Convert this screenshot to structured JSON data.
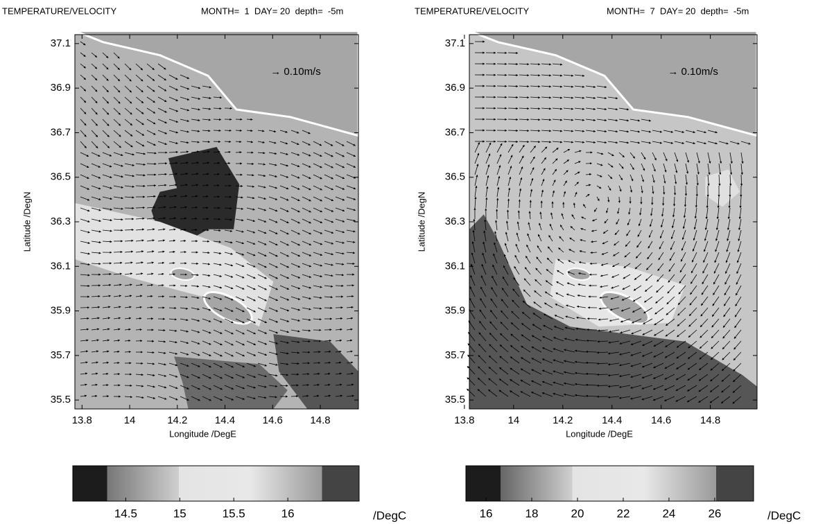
{
  "chart_data": [
    {
      "type": "quiver",
      "title": "TEMPERATURE/VELOCITY",
      "subtitle": "MONTH=  1  DAY= 20  depth=  -5m",
      "xlabel": "Longitude /DegE",
      "ylabel": "Latitude /DegN",
      "annotation": "→ 0.10m/s",
      "xlim": [
        13.77,
        14.96
      ],
      "ylim": [
        35.46,
        37.14
      ],
      "xticks": [
        13.8,
        14,
        14.2,
        14.4,
        14.6,
        14.8
      ],
      "yticks": [
        35.5,
        35.7,
        35.9,
        36.1,
        36.3,
        36.5,
        36.7,
        36.9,
        37.1
      ],
      "colorbar": {
        "lim": [
          14.01,
          16.66
        ],
        "ticks": [
          14.5,
          15,
          15.5,
          16
        ],
        "label": "/DegC"
      }
    },
    {
      "type": "quiver",
      "title": "TEMPERATURE/VELOCITY",
      "subtitle": "MONTH=  7  DAY= 20  depth=  -5m",
      "xlabel": "Longitude /DegE",
      "ylabel": "Latitude /DegN",
      "annotation": "→ 0.10m/s",
      "xlim": [
        13.82,
        14.99
      ],
      "ylim": [
        35.46,
        37.14
      ],
      "xticks": [
        13.8,
        14,
        14.2,
        14.4,
        14.6,
        14.8
      ],
      "yticks": [
        35.5,
        35.7,
        35.9,
        36.1,
        36.3,
        36.5,
        36.7,
        36.9,
        37.1
      ],
      "colorbar": {
        "lim": [
          15.12,
          27.7
        ],
        "ticks": [
          16,
          18,
          20,
          22,
          24,
          26
        ],
        "label": "/DegC"
      }
    }
  ]
}
